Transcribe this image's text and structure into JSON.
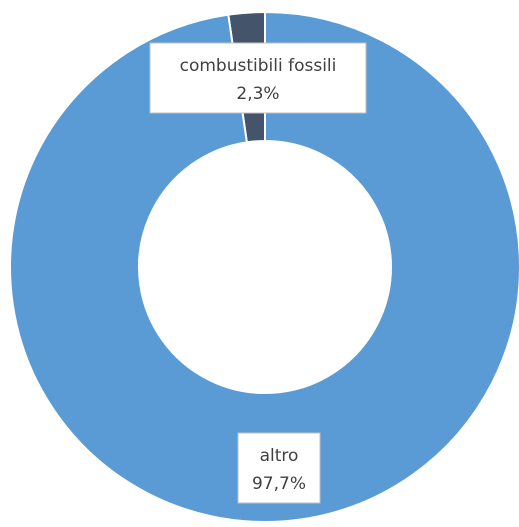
{
  "chart_data": {
    "type": "pie",
    "variant": "doughnut",
    "slices": [
      {
        "category": "combustibili fossili",
        "value": 2.3,
        "label": "2,3%",
        "color": "#44546A"
      },
      {
        "category": "altro",
        "value": 97.7,
        "label": "97,7%",
        "color": "#5B9BD5"
      }
    ],
    "title": "",
    "legend": "none"
  }
}
